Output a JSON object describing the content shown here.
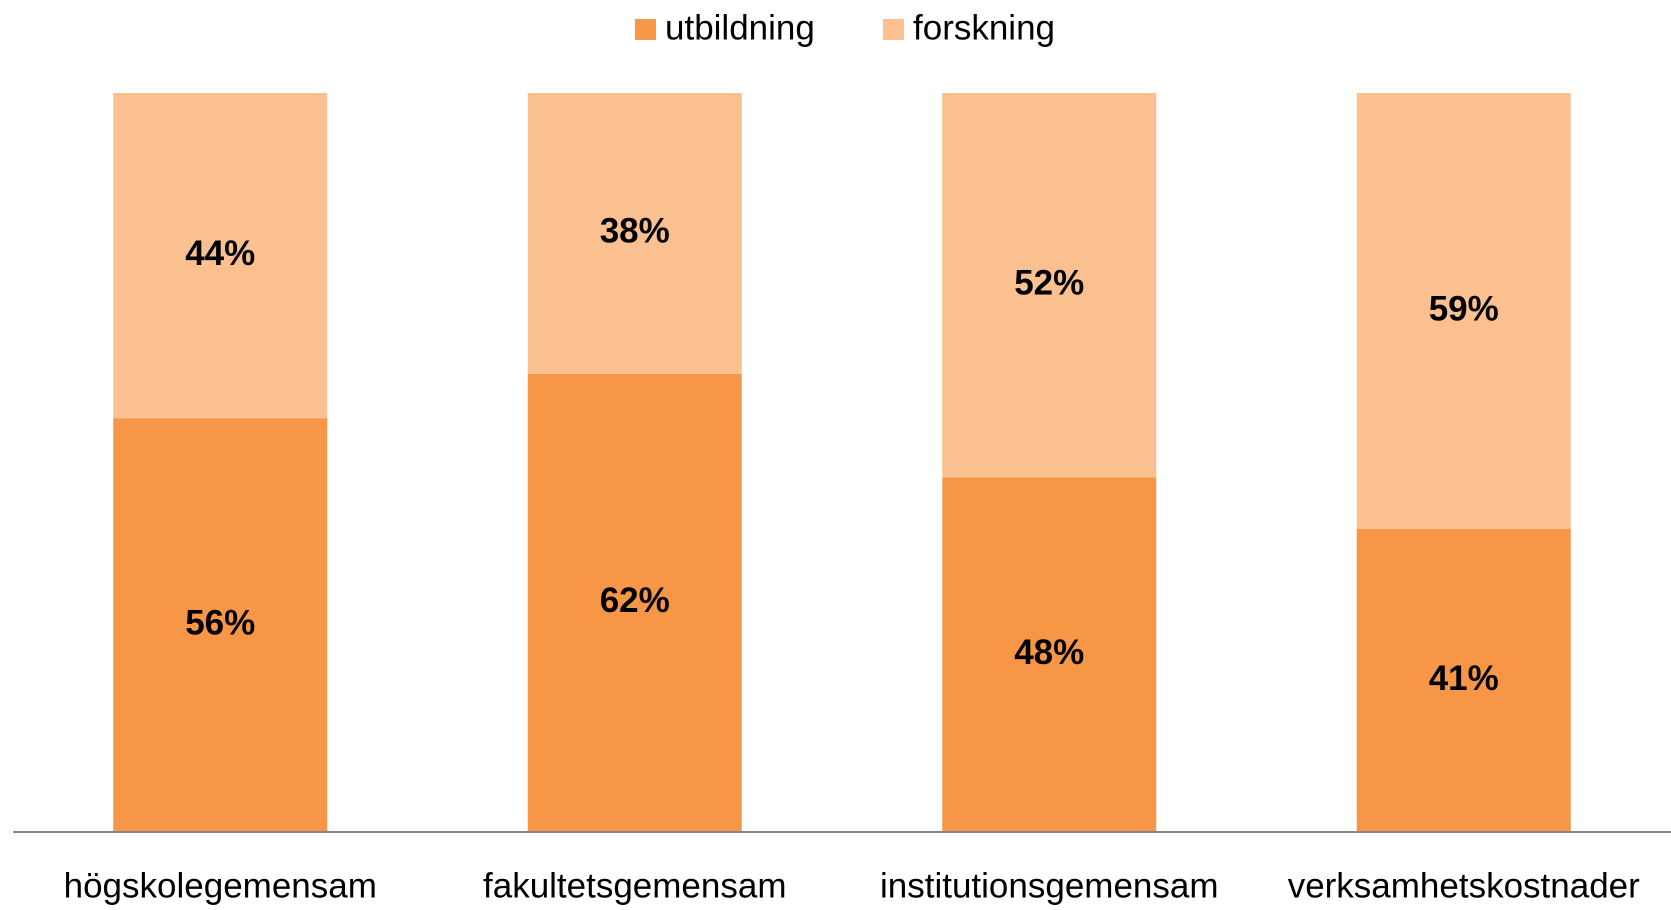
{
  "chart_data": {
    "type": "stacked-bar",
    "categories": [
      "högskolegemensam",
      "fakultetsgemensam",
      "institutionsgemensam",
      "verksamhetskostnader"
    ],
    "series": [
      {
        "name": "utbildning",
        "color": "#f79646",
        "values": [
          56,
          62,
          48,
          41
        ],
        "value_labels": [
          "56%",
          "62%",
          "48%",
          "41%"
        ]
      },
      {
        "name": "forskning",
        "color": "#fac090",
        "values": [
          44,
          38,
          52,
          59
        ],
        "value_labels": [
          "44%",
          "38%",
          "52%",
          "59%"
        ]
      }
    ],
    "ylim": [
      0,
      100
    ],
    "legend": "top"
  }
}
